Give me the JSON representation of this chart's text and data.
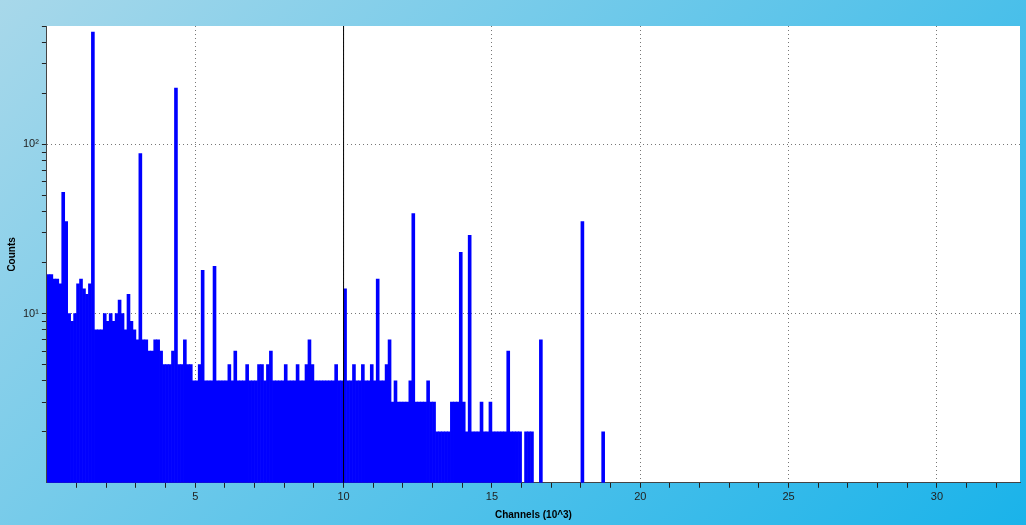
{
  "chart_data": {
    "type": "histogram",
    "xlabel": "Channels (10^3)",
    "ylabel": "Counts",
    "color": "#0000ff",
    "log": "y",
    "grid": true,
    "bins": [
      0,
      0.1,
      0.2,
      0.3,
      0.4,
      0.5,
      0.6,
      0.7,
      0.8,
      0.9,
      1,
      1.1,
      1.2,
      1.3,
      1.4,
      1.5,
      1.6,
      1.7,
      1.8,
      1.9,
      2,
      2.1,
      2.2,
      2.3,
      2.4,
      2.5,
      2.6,
      2.7,
      2.8,
      2.9,
      3,
      3.1,
      3.2,
      3.3,
      3.4,
      3.5,
      3.6,
      3.7,
      3.8,
      3.9,
      4,
      4.1,
      4.2,
      4.3,
      4.4,
      4.5,
      4.6,
      4.7,
      4.8,
      4.9,
      5,
      5.1,
      5.2,
      5.3,
      5.4,
      5.5,
      5.6,
      5.7,
      5.8,
      5.9,
      6,
      6.1,
      6.2,
      6.3,
      6.4,
      6.5,
      6.6,
      6.7,
      6.8,
      6.9,
      7,
      7.1,
      7.2,
      7.3,
      7.4,
      7.5,
      7.6,
      7.7,
      7.8,
      7.9,
      8,
      8.1,
      8.2,
      8.3,
      8.4,
      8.5,
      8.6,
      8.7,
      8.8,
      8.9,
      9,
      9.1,
      9.2,
      9.3,
      9.4,
      9.5,
      9.6,
      9.7,
      9.8,
      9.9,
      10,
      10.1,
      10.2,
      10.3,
      10.4,
      10.5,
      10.6,
      10.7,
      10.8,
      10.9,
      11,
      11.1,
      11.2,
      11.3,
      11.4,
      11.5,
      11.6,
      11.7,
      11.8,
      11.9,
      12,
      12.1,
      12.2,
      12.3,
      12.4,
      12.5,
      12.6,
      12.7,
      12.8,
      12.9,
      13,
      13.1,
      13.2,
      13.3,
      13.4,
      13.5,
      13.6,
      13.7,
      13.8,
      13.9,
      14,
      14.1,
      14.2,
      14.3,
      14.4,
      14.5,
      14.6,
      14.7,
      14.8,
      14.9,
      15,
      15.1,
      15.2,
      15.3,
      15.4,
      15.5,
      15.6,
      15.7,
      15.8,
      15.9,
      16,
      16.1,
      16.2,
      16.3,
      16.4,
      16.5,
      16.6,
      16.7,
      16.8,
      16.9,
      17,
      17.1,
      17.2,
      17.3,
      17.4,
      17.5,
      17.6,
      17.7,
      17.8,
      17.9,
      18,
      18.1,
      18.2,
      18.3,
      18.4,
      18.5,
      18.6,
      18.7,
      18.8
    ],
    "values": [
      17,
      17,
      16,
      16,
      15,
      52,
      35,
      10,
      9,
      10,
      15,
      16,
      14,
      13,
      15,
      460,
      8,
      8,
      8,
      10,
      9,
      10,
      9,
      10,
      12,
      10,
      8,
      13,
      9,
      8,
      7,
      88,
      7,
      7,
      6,
      6,
      7,
      7,
      6,
      5,
      5,
      5,
      6,
      215,
      5,
      5,
      7,
      5,
      5,
      4,
      4,
      5,
      18,
      4,
      4,
      4,
      19,
      4,
      4,
      4,
      4,
      5,
      4,
      6,
      4,
      4,
      4,
      5,
      4,
      4,
      4,
      5,
      5,
      4,
      5,
      6,
      4,
      4,
      4,
      4,
      5,
      4,
      4,
      4,
      5,
      4,
      4,
      5,
      7,
      5,
      4,
      4,
      4,
      4,
      4,
      4,
      4,
      5,
      4,
      4,
      14,
      4,
      4,
      5,
      4,
      4,
      5,
      4,
      4,
      5,
      4,
      16,
      4,
      4,
      5,
      7,
      3,
      4,
      3,
      3,
      3,
      3,
      4,
      39,
      3,
      3,
      3,
      3,
      4,
      3,
      3,
      2,
      2,
      2,
      2,
      2,
      3,
      3,
      3,
      23,
      3,
      2,
      29,
      2,
      2,
      2,
      3,
      2,
      2,
      3,
      2,
      2,
      2,
      2,
      2,
      6,
      2,
      2,
      2,
      2,
      null,
      2,
      2,
      2,
      null,
      null,
      7,
      null,
      null,
      null,
      null,
      null,
      null,
      null,
      null,
      null,
      null,
      null,
      null,
      null,
      35,
      null,
      null,
      null,
      null,
      null,
      null,
      2
    ],
    "xlim": [
      0,
      32.8
    ],
    "xticks": [
      {
        "value": 1,
        "label": null
      },
      {
        "value": 2,
        "label": null
      },
      {
        "value": 3,
        "label": null
      },
      {
        "value": 4,
        "label": null
      },
      5,
      {
        "value": 6,
        "label": null
      },
      {
        "value": 7,
        "label": null
      },
      {
        "value": 8,
        "label": null
      },
      {
        "value": 9,
        "label": null
      },
      10,
      {
        "value": 11,
        "label": null
      },
      {
        "value": 12,
        "label": null
      },
      {
        "value": 13,
        "label": null
      },
      {
        "value": 14,
        "label": null
      },
      15,
      {
        "value": 16,
        "label": null
      },
      {
        "value": 17,
        "label": null
      },
      {
        "value": 18,
        "label": null
      },
      {
        "value": 19,
        "label": null
      },
      20,
      {
        "value": 21,
        "label": null
      },
      {
        "value": 22,
        "label": null
      },
      {
        "value": 23,
        "label": null
      },
      {
        "value": 24,
        "label": null
      },
      25,
      {
        "value": 26,
        "label": null
      },
      {
        "value": 27,
        "label": null
      },
      {
        "value": 28,
        "label": null
      },
      {
        "value": 29,
        "label": null
      },
      30,
      {
        "value": 31,
        "label": null
      },
      {
        "value": 32,
        "label": null
      }
    ],
    "ylim": [
      1,
      500
    ],
    "yticks": [
      {
        "value": 2,
        "label": null
      },
      {
        "value": 3,
        "label": null
      },
      {
        "value": 4,
        "label": null
      },
      {
        "value": 5,
        "label": null
      },
      {
        "value": 6,
        "label": null
      },
      {
        "value": 7,
        "label": null
      },
      {
        "value": 8,
        "label": null
      },
      {
        "value": 9,
        "label": null
      },
      {
        "value": 10,
        "label": "10¹"
      },
      {
        "value": 20,
        "label": null
      },
      {
        "value": 30,
        "label": null
      },
      {
        "value": 40,
        "label": null
      },
      {
        "value": 50,
        "label": null
      },
      {
        "value": 60,
        "label": null
      },
      {
        "value": 70,
        "label": null
      },
      {
        "value": 80,
        "label": null
      },
      {
        "value": 90,
        "label": null
      },
      {
        "value": 100,
        "label": "10²"
      },
      {
        "value": 200,
        "label": null
      },
      {
        "value": 300,
        "label": null
      },
      {
        "value": 400,
        "label": null
      },
      {
        "value": 500,
        "label": null
      }
    ],
    "ref_lines": [
      {
        "axis": "x",
        "value": 10,
        "color": "#000000"
      }
    ]
  }
}
